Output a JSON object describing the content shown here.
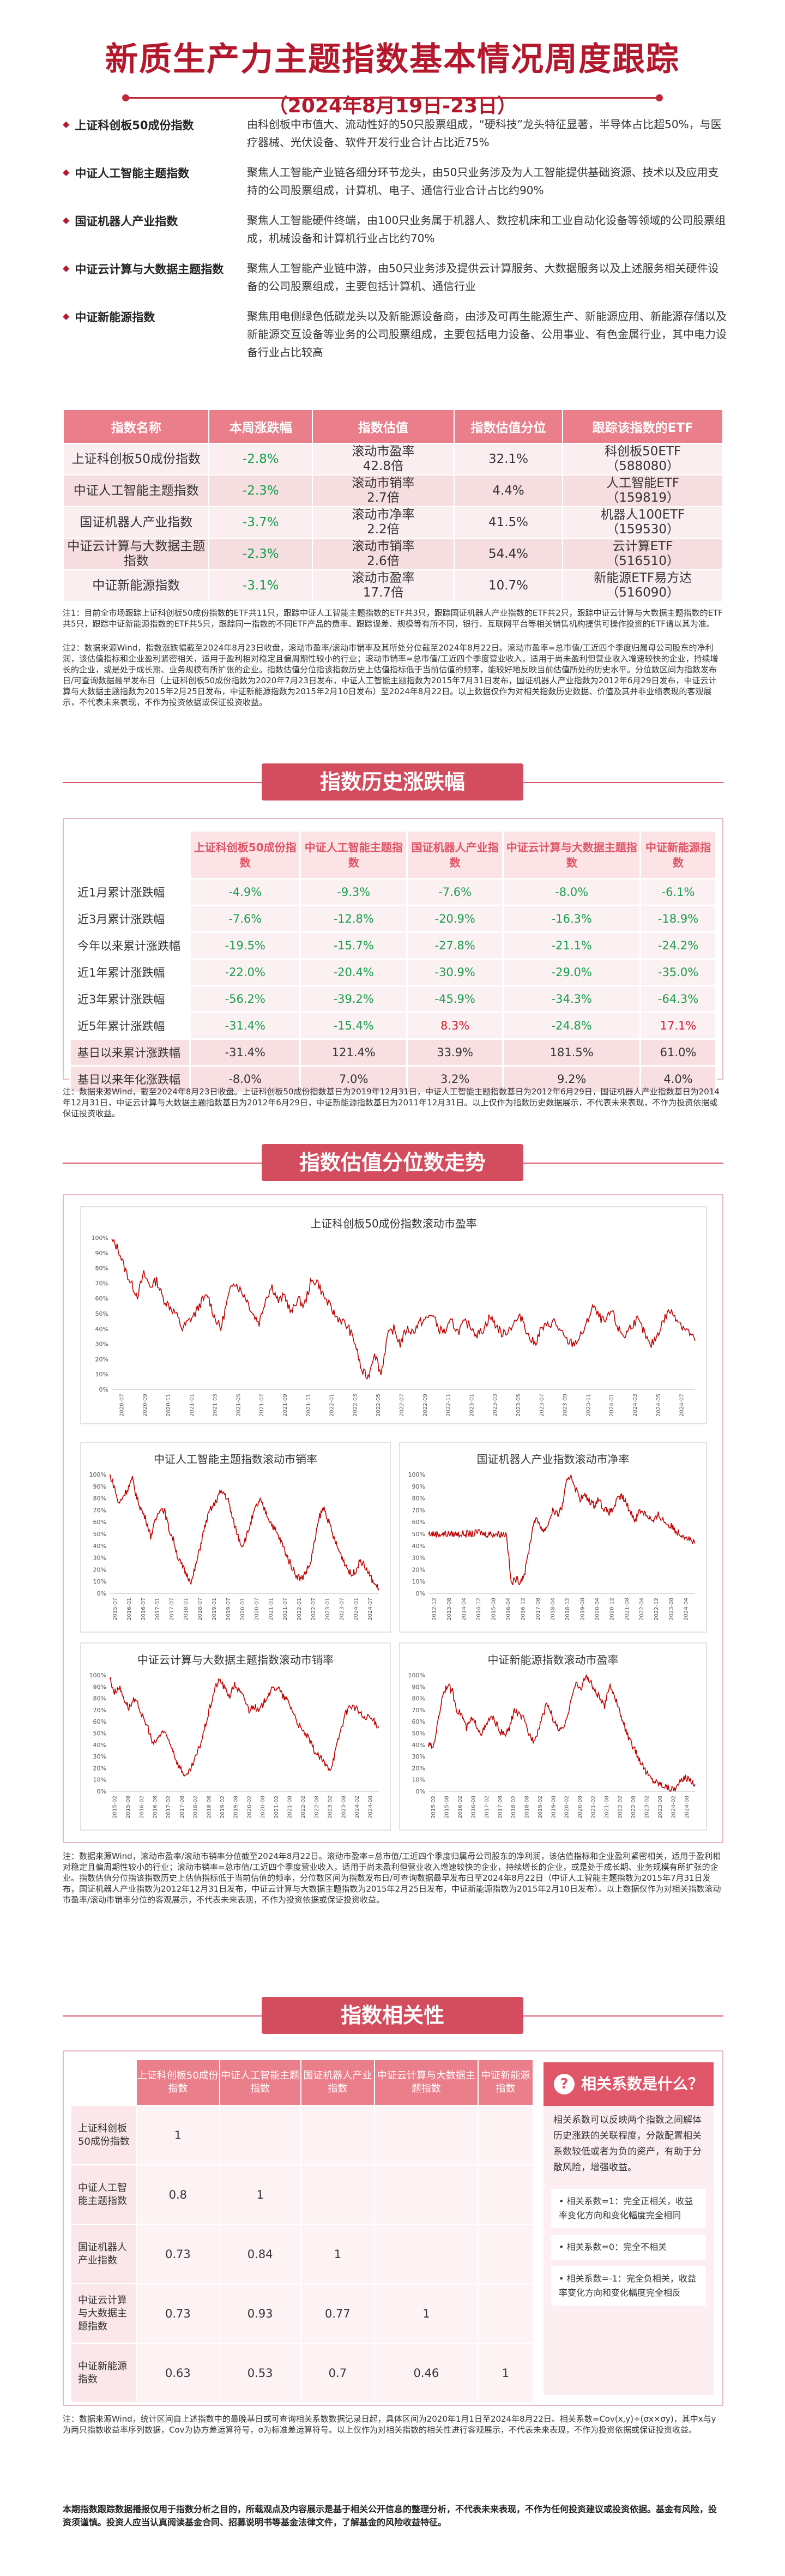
{
  "header": {
    "title": "新质生产力主题指数基本情况周度跟踪",
    "subtitle": "（2024年8月19日-23日）"
  },
  "indices": [
    {
      "name": "上证科创板50成份指数",
      "desc": "由科创板中市值大、流动性好的50只股票组成，“硬科技”龙头特征显著，半导体占比超50%，与医疗器械、光伏设备、软件开发行业合计占比近75%"
    },
    {
      "name": "中证人工智能主题指数",
      "desc": "聚焦人工智能产业链各细分环节龙头，由50只业务涉及为人工智能提供基础资源、技术以及应用支持的公司股票组成，计算机、电子、通信行业合计占比约90%"
    },
    {
      "name": "国证机器人产业指数",
      "desc": "聚焦人工智能硬件终端，由100只业务属于机器人、数控机床和工业自动化设备等领域的公司股票组成，机械设备和计算机行业占比约70%"
    },
    {
      "name": "中证云计算与大数据主题指数",
      "desc": "聚焦人工智能产业链中游，由50只业务涉及提供云计算服务、大数据服务以及上述服务相关硬件设备的公司股票组成，主要包括计算机、通信行业"
    },
    {
      "name": "中证新能源指数",
      "desc": "聚焦用电侧绿色低碳龙头以及新能源设备商，由涉及可再生能源生产、新能源应用、新能源存储以及新能源交互设备等业务的公司股票组成，主要包括电力设备、公用事业、有色金属行业，其中电力设备行业占比较高"
    }
  ],
  "valuation_table": {
    "headers": [
      "指数名称",
      "本周涨跌幅",
      "指数估值",
      "指数估值分位",
      "跟踪该指数的ETF"
    ],
    "rows": [
      {
        "name": "上证科创板50成份指数",
        "change": "-2.8%",
        "val_label": "滚动市盈率",
        "val": "42.8倍",
        "pct": "32.1%",
        "etf": "科创板50ETF",
        "code": "（588080）"
      },
      {
        "name": "中证人工智能主题指数",
        "change": "-2.3%",
        "val_label": "滚动市销率",
        "val": "2.7倍",
        "pct": "4.4%",
        "etf": "人工智能ETF",
        "code": "（159819）"
      },
      {
        "name": "国证机器人产业指数",
        "change": "-3.7%",
        "val_label": "滚动市净率",
        "val": "2.2倍",
        "pct": "41.5%",
        "etf": "机器人100ETF",
        "code": "（159530）"
      },
      {
        "name": "中证云计算与大数据主题指数",
        "change": "-2.3%",
        "val_label": "滚动市销率",
        "val": "2.6倍",
        "pct": "54.4%",
        "etf": "云计算ETF",
        "code": "（516510）"
      },
      {
        "name": "中证新能源指数",
        "change": "-3.1%",
        "val_label": "滚动市盈率",
        "val": "17.7倍",
        "pct": "10.7%",
        "etf": "新能源ETF易方达",
        "code": "（516090）"
      }
    ]
  },
  "notes": {
    "note1": "注1：目前全市场跟踪上证科创板50成份指数的ETF共11只，跟踪中证人工智能主题指数的ETF共3只，跟踪国证机器人产业指数的ETF共2只，跟踪中证云计算与大数据主题指数的ETF共5只，跟踪中证新能源指数的ETF共5只，跟踪同一指数的不同ETF产品的费率、跟踪误差、规模等有所不同，银行、互联网平台等相关销售机构提供可操作投资的ETF请以其为准。",
    "note2": "注2：数据来源Wind，指数涨跌幅截至2024年8月23日收盘，滚动市盈率/滚动市销率及其所处分位截至2024年8月22日。滚动市盈率=总市值/工近四个季度归属母公司股东的净利润，该估值指标和企业盈利紧密相关，适用于盈利相对稳定且偏周期性较小的行业；滚动市销率=总市值/工近四个季度营业收入，适用于尚未盈利但营业收入增速较快的企业，持续增长的企业，或是处于成长期、业务规模有所扩张的企业。指数估值分位指该指数历史上估值指标低于当前估值的频率，能较好地反映当前估值所处的历史水平。分位数区间为指数发布日/可查询数据最早发布日（上证科创板50成份指数为2020年7月23日发布，中证人工智能主题指数为2015年7月31日发布，国证机器人产业指数为2012年6月29日发布，中证云计算与大数据主题指数为2015年2月25日发布，中证新能源指数为2015年2月10日发布）至2024年8月22日。以上数据仅作为对相关指数历史数据、价值及其并非业绩表现的客观展示，不代表未来表现，不作为投资依据或保证投资收益。",
    "note3": "注：数据来源Wind，截至2024年8月23日收盘。上证科创板50成份指数基日为2019年12月31日，中证人工智能主题指数基日为2012年6月29日，国证机器人产业指数基日为2014年12月31日，中证云计算与大数据主题指数基日为2012年6月29日，中证新能源指数基日为2011年12月31日。以上仅作为指数历史数据展示，不代表未来表现，不作为投资依据或保证投资收益。",
    "note4": "注：数据来源Wind，滚动市盈率/滚动市销率分位截至2024年8月22日。滚动市盈率=总市值/工近四个季度归属母公司股东的净利润，该估值指标和企业盈利紧密相关，适用于盈利相对稳定且偏周期性较小的行业；滚动市销率=总市值/工近四个季度营业收入，适用于尚未盈利但营业收入增速较快的企业，持续增长的企业，或是处于成长期、业务规模有所扩张的企业。指数估值分位指该指数历史上估值指标低于当前估值的频率，分位数区间为指数发布日/可查询数据最早发布日至2024年8月22日（中证人工智能主题指数为2015年7月31日发布，国证机器人产业指数为2012年12月31日发布，中证云计算与大数据主题指数为2015年2月25日发布，中证新能源指数为2015年2月10日发布）。以上数据仅作为对相关指数滚动市盈率/滚动市销率分位的客观展示，不代表未来表现，不作为投资依据或保证投资收益。",
    "note5": "注：数据来源Wind，统计区间自上述指数中的最晚基日或可查询相关系数数据记录日起，具体区间为2020年1月1日至2024年8月22日。相关系数=Cov(x,y)÷(σx×σy)，其中x与y为两只指数收益率序列数据，Cov为协方差运算符号，σ为标准差运算符号。以上仅作为对相关指数的相关性进行客观展示，不代表未来表现，不作为投资依据或保证投资收益。"
  },
  "sections": {
    "perf": "指数历史涨跌幅",
    "valuation": "指数估值分位数走势",
    "corr": "指数相关性"
  },
  "perf_table": {
    "headers": [
      "上证科创板50成份指数",
      "中证人工智能主题指数",
      "国证机器人产业指数",
      "中证云计算与大数据主题指数",
      "中证新能源指数"
    ],
    "rows": [
      {
        "label": "近1月累计涨跌幅",
        "vals": [
          "-4.9%",
          "-9.3%",
          "-7.6%",
          "-8.0%",
          "-6.1%"
        ]
      },
      {
        "label": "近3月累计涨跌幅",
        "vals": [
          "-7.6%",
          "-12.8%",
          "-20.9%",
          "-16.3%",
          "-18.9%"
        ]
      },
      {
        "label": "今年以来累计涨跌幅",
        "vals": [
          "-19.5%",
          "-15.7%",
          "-27.8%",
          "-21.1%",
          "-24.2%"
        ]
      },
      {
        "label": "近1年累计涨跌幅",
        "vals": [
          "-22.0%",
          "-20.4%",
          "-30.9%",
          "-29.0%",
          "-35.0%"
        ]
      },
      {
        "label": "近3年累计涨跌幅",
        "vals": [
          "-56.2%",
          "-39.2%",
          "-45.9%",
          "-34.3%",
          "-64.3%"
        ]
      },
      {
        "label": "近5年累计涨跌幅",
        "vals": [
          "-31.4%",
          "-15.4%",
          "8.3%",
          "-24.8%",
          "17.1%"
        ]
      },
      {
        "label": "基日以来累计涨跌幅",
        "vals": [
          "-31.4%",
          "121.4%",
          "33.9%",
          "181.5%",
          "61.0%"
        ]
      },
      {
        "label": "基日以来年化涨跌幅",
        "vals": [
          "-8.0%",
          "7.0%",
          "3.2%",
          "9.2%",
          "4.0%"
        ]
      }
    ]
  },
  "chart_data": [
    {
      "type": "line",
      "title": "上证科创板50成份指数滚动市盈率",
      "ylim": [
        0,
        100
      ],
      "yticks": [
        "0%",
        "10%",
        "20%",
        "30%",
        "40%",
        "50%",
        "60%",
        "70%",
        "80%",
        "90%",
        "100%"
      ],
      "xticks": [
        "2020-07",
        "2020-09",
        "2020-11",
        "2021-01",
        "2021-03",
        "2021-05",
        "2021-07",
        "2021-09",
        "2021-11",
        "2022-01",
        "2022-03",
        "2022-05",
        "2022-07",
        "2022-09",
        "2022-11",
        "2023-01",
        "2023-03",
        "2023-05",
        "2023-07",
        "2023-09",
        "2023-11",
        "2024-01",
        "2024-03",
        "2024-05",
        "2024-07"
      ],
      "y": [
        98,
        93,
        80,
        70,
        62,
        76,
        68,
        72,
        60,
        55,
        50,
        40,
        45,
        50,
        58,
        62,
        48,
        40,
        58,
        72,
        66,
        60,
        50,
        44,
        60,
        68,
        58,
        62,
        50,
        60,
        55,
        70,
        72,
        62,
        55,
        48,
        45,
        40,
        30,
        12,
        8,
        25,
        10,
        35,
        40,
        30,
        40,
        38,
        44,
        46,
        50,
        40,
        38,
        45,
        38,
        44,
        42,
        36,
        40,
        48,
        42,
        36,
        40,
        45,
        48,
        35,
        30,
        40,
        42,
        45,
        38,
        32,
        30,
        34,
        42,
        55,
        48,
        44,
        52,
        40,
        35,
        42,
        46,
        38,
        28,
        35,
        45,
        52,
        48,
        42,
        38,
        32
      ]
    },
    {
      "type": "line",
      "title": "中证人工智能主题指数滚动市销率",
      "ylim": [
        0,
        100
      ],
      "yticks": [
        "0%",
        "10%",
        "20%",
        "30%",
        "40%",
        "50%",
        "60%",
        "70%",
        "80%",
        "90%",
        "100%"
      ],
      "xticks": [
        "2015-07",
        "2016-01",
        "2016-07",
        "2017-01",
        "2017-07",
        "2018-01",
        "2018-07",
        "2019-01",
        "2019-07",
        "2020-01",
        "2020-07",
        "2021-01",
        "2021-07",
        "2022-01",
        "2022-07",
        "2023-01",
        "2023-07",
        "2024-01",
        "2024-07"
      ],
      "y": [
        100,
        90,
        75,
        82,
        88,
        96,
        80,
        70,
        62,
        48,
        60,
        72,
        70,
        54,
        45,
        30,
        22,
        15,
        10,
        25,
        42,
        58,
        70,
        75,
        84,
        85,
        78,
        62,
        50,
        40,
        48,
        60,
        72,
        78,
        70,
        62,
        55,
        48,
        40,
        30,
        22,
        15,
        12,
        18,
        25,
        45,
        65,
        72,
        60,
        48,
        38,
        30,
        22,
        15,
        20,
        28,
        22,
        15,
        8,
        4
      ]
    },
    {
      "type": "line",
      "title": "国证机器人产业指数滚动市净率",
      "ylim": [
        0,
        100
      ],
      "yticks": [
        "0%",
        "10%",
        "20%",
        "30%",
        "40%",
        "50%",
        "60%",
        "70%",
        "80%",
        "90%",
        "100%"
      ],
      "xticks": [
        "2012-12",
        "2013-08",
        "2014-04",
        "2014-12",
        "2015-08",
        "2016-04",
        "2016-12",
        "2017-08",
        "2018-04",
        "2018-12",
        "2019-08",
        "2020-04",
        "2020-12",
        "2021-08",
        "2022-04",
        "2022-12",
        "2023-08",
        "2024-04"
      ],
      "y": [
        50,
        50,
        50,
        50,
        50,
        50,
        50,
        50,
        50,
        50,
        50,
        52,
        50,
        50,
        50,
        50,
        50,
        50,
        8,
        12,
        10,
        18,
        40,
        62,
        60,
        52,
        58,
        70,
        66,
        72,
        92,
        100,
        88,
        80,
        82,
        78,
        74,
        80,
        72,
        68,
        70,
        78,
        82,
        76,
        68,
        62,
        70,
        68,
        64,
        60,
        66,
        62,
        58,
        56,
        52,
        50,
        48,
        45,
        42
      ]
    },
    {
      "type": "line",
      "title": "中证云计算与大数据主题指数滚动市销率",
      "ylim": [
        0,
        100
      ],
      "yticks": [
        "0%",
        "10%",
        "20%",
        "30%",
        "40%",
        "50%",
        "60%",
        "70%",
        "80%",
        "90%",
        "100%"
      ],
      "xticks": [
        "2015-02",
        "2015-08",
        "2016-02",
        "2016-08",
        "2017-02",
        "2017-08",
        "2018-02",
        "2018-08",
        "2019-02",
        "2019-08",
        "2020-02",
        "2020-08",
        "2021-02",
        "2021-08",
        "2022-02",
        "2022-08",
        "2023-02",
        "2023-08",
        "2024-02",
        "2024-08"
      ],
      "y": [
        98,
        85,
        90,
        80,
        72,
        78,
        74,
        62,
        55,
        40,
        45,
        52,
        46,
        38,
        25,
        18,
        12,
        20,
        30,
        42,
        58,
        74,
        90,
        96,
        88,
        82,
        92,
        86,
        80,
        70,
        74,
        68,
        76,
        84,
        88,
        90,
        82,
        78,
        70,
        60,
        52,
        48,
        40,
        32,
        28,
        22,
        20,
        35,
        52,
        66,
        74,
        72,
        68,
        62,
        64,
        60,
        56
      ]
    },
    {
      "type": "line",
      "title": "中证新能源指数滚动市盈率",
      "ylim": [
        0,
        100
      ],
      "yticks": [
        "0%",
        "10%",
        "20%",
        "30%",
        "40%",
        "50%",
        "60%",
        "70%",
        "80%",
        "90%",
        "100%"
      ],
      "xticks": [
        "2015-02",
        "2015-08",
        "2016-02",
        "2016-08",
        "2017-02",
        "2017-08",
        "2018-02",
        "2018-08",
        "2019-02",
        "2019-08",
        "2020-02",
        "2020-08",
        "2021-02",
        "2021-08",
        "2022-02",
        "2022-08",
        "2023-02",
        "2023-08",
        "2024-02",
        "2024-08"
      ],
      "y": [
        40,
        38,
        60,
        84,
        92,
        86,
        70,
        66,
        54,
        62,
        58,
        50,
        55,
        64,
        60,
        52,
        48,
        54,
        70,
        66,
        62,
        50,
        44,
        52,
        66,
        76,
        64,
        55,
        52,
        60,
        82,
        92,
        88,
        100,
        94,
        86,
        80,
        72,
        92,
        84,
        70,
        58,
        46,
        38,
        30,
        22,
        15,
        10,
        8,
        6,
        4,
        2,
        3,
        8,
        12,
        10,
        6
      ]
    }
  ],
  "corr_table": {
    "headers": [
      "上证科创板50成份指数",
      "中证人工智能主题指数",
      "国证机器人产业指数",
      "中证云计算与大数据主题指数",
      "中证新能源指数"
    ],
    "rows": [
      {
        "label": "上证科创板50成份指数",
        "vals": [
          "1",
          "",
          "",
          "",
          ""
        ]
      },
      {
        "label": "中证人工智能主题指数",
        "vals": [
          "0.8",
          "1",
          "",
          "",
          ""
        ]
      },
      {
        "label": "国证机器人产业指数",
        "vals": [
          "0.73",
          "0.84",
          "1",
          "",
          ""
        ]
      },
      {
        "label": "中证云计算与大数据主题指数",
        "vals": [
          "0.73",
          "0.93",
          "0.77",
          "1",
          ""
        ]
      },
      {
        "label": "中证新能源指数",
        "vals": [
          "0.63",
          "0.53",
          "0.7",
          "0.46",
          "1"
        ]
      }
    ]
  },
  "corr_side": {
    "title": "相关系数是什么？",
    "icon": "question-icon",
    "text": "相关系数可以反映两个指数之间解体历史涨跌的关联程度，分散配置相关系数较低或者为负的资产，有助于分散风险，增强收益。",
    "points": [
      "• 相关系数=1：完全正相关，收益率变化方向和变化幅度完全相同",
      "• 相关系数=0：完全不相关",
      "• 相关系数=-1：完全负相关，收益率变化方向和变化幅度完全相反"
    ]
  },
  "footer": "本期指数跟踪数据播报仅用于指数分析之目的，所载观点及内容展示是基于相关公开信息的整理分析，不代表未来表现，不作为任何投资建议或投资依据。基金有风险，投资须谨慎。投资人应当认真阅读基金合同、招募说明书等基金法律文件，了解基金的风险收益特征。",
  "colors": {
    "brand": "#b4182c",
    "accent": "#ea7e8b",
    "negative": "#1a9e4f",
    "positive": "#d01f33",
    "line": "#c00000"
  }
}
